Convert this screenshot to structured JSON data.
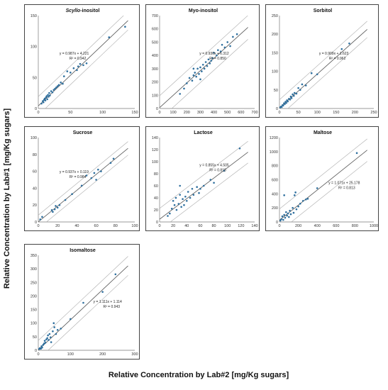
{
  "axis_titles": {
    "y": "Relative Concentration by Lab#1 [mg/Kg sugars]",
    "x": "Relative Concentration by Lab#2 [mg/Kg sugars]"
  },
  "colors": {
    "points": "#2e6f9e",
    "fit": "#555555",
    "band": "#aaaaaa",
    "frame": "#444444"
  },
  "chart_data": [
    {
      "type": "scatter",
      "title": "Scyllo-inositol",
      "title_italic_prefix": "Scyllo",
      "xlim": [
        0,
        150
      ],
      "ylim": [
        0,
        150
      ],
      "xticks": [
        0,
        50,
        100,
        150
      ],
      "yticks": [
        0,
        50,
        100,
        150
      ],
      "equation": "y = 0.987x + 4.221",
      "r2": "R² = 0.942",
      "slope": 0.987,
      "intercept": 4.221,
      "band": 15,
      "points": [
        [
          5,
          8
        ],
        [
          7,
          12
        ],
        [
          8,
          10
        ],
        [
          9,
          14
        ],
        [
          10,
          16
        ],
        [
          11,
          13
        ],
        [
          12,
          18
        ],
        [
          13,
          20
        ],
        [
          14,
          15
        ],
        [
          15,
          22
        ],
        [
          16,
          19
        ],
        [
          17,
          25
        ],
        [
          18,
          21
        ],
        [
          20,
          28
        ],
        [
          22,
          26
        ],
        [
          24,
          30
        ],
        [
          26,
          32
        ],
        [
          28,
          34
        ],
        [
          30,
          36
        ],
        [
          32,
          38
        ],
        [
          35,
          42
        ],
        [
          38,
          40
        ],
        [
          40,
          52
        ],
        [
          45,
          60
        ],
        [
          50,
          58
        ],
        [
          55,
          65
        ],
        [
          60,
          62
        ],
        [
          62,
          68
        ],
        [
          65,
          72
        ],
        [
          70,
          70
        ],
        [
          75,
          73
        ],
        [
          110,
          115
        ],
        [
          135,
          132
        ]
      ]
    },
    {
      "type": "scatter",
      "title": "Myo-inositol",
      "xlim": [
        0,
        700
      ],
      "ylim": [
        0,
        700
      ],
      "xticks": [
        0,
        100,
        200,
        300,
        400,
        500,
        600,
        700
      ],
      "yticks": [
        0,
        100,
        200,
        300,
        400,
        500,
        600,
        700
      ],
      "equation": "y = 0.930x + 6.312",
      "r2": "R² = 0.850",
      "slope": 0.93,
      "intercept": 6.312,
      "band": 90,
      "points": [
        [
          150,
          110
        ],
        [
          180,
          150
        ],
        [
          200,
          190
        ],
        [
          220,
          230
        ],
        [
          240,
          210
        ],
        [
          250,
          250
        ],
        [
          260,
          270
        ],
        [
          270,
          240
        ],
        [
          280,
          300
        ],
        [
          290,
          260
        ],
        [
          300,
          310
        ],
        [
          310,
          280
        ],
        [
          320,
          330
        ],
        [
          330,
          300
        ],
        [
          340,
          350
        ],
        [
          350,
          320
        ],
        [
          360,
          370
        ],
        [
          370,
          340
        ],
        [
          380,
          360
        ],
        [
          390,
          380
        ],
        [
          400,
          420
        ],
        [
          420,
          400
        ],
        [
          430,
          440
        ],
        [
          450,
          430
        ],
        [
          460,
          480
        ],
        [
          480,
          460
        ],
        [
          500,
          500
        ],
        [
          520,
          470
        ],
        [
          540,
          540
        ],
        [
          570,
          560
        ],
        [
          300,
          220
        ],
        [
          250,
          300
        ]
      ]
    },
    {
      "type": "scatter",
      "title": "Sorbitol",
      "xlim": [
        0,
        250
      ],
      "ylim": [
        0,
        250
      ],
      "xticks": [
        0,
        50,
        100,
        150,
        200,
        250
      ],
      "yticks": [
        0,
        50,
        100,
        150,
        200,
        250
      ],
      "equation": "y = 0.909x + 1.623",
      "r2": "R² = 0.962",
      "slope": 0.909,
      "intercept": 1.623,
      "band": 22,
      "points": [
        [
          2,
          3
        ],
        [
          4,
          5
        ],
        [
          6,
          4
        ],
        [
          8,
          9
        ],
        [
          10,
          8
        ],
        [
          12,
          14
        ],
        [
          14,
          12
        ],
        [
          16,
          18
        ],
        [
          18,
          15
        ],
        [
          20,
          22
        ],
        [
          22,
          19
        ],
        [
          25,
          26
        ],
        [
          28,
          24
        ],
        [
          30,
          32
        ],
        [
          32,
          28
        ],
        [
          35,
          38
        ],
        [
          38,
          34
        ],
        [
          40,
          42
        ],
        [
          45,
          40
        ],
        [
          50,
          55
        ],
        [
          55,
          50
        ],
        [
          60,
          65
        ],
        [
          70,
          62
        ],
        [
          85,
          95
        ],
        [
          100,
          92
        ],
        [
          165,
          160
        ],
        [
          185,
          175
        ]
      ]
    },
    {
      "type": "scatter",
      "title": "Sucrose",
      "xlim": [
        0,
        100
      ],
      "ylim": [
        0,
        100
      ],
      "xticks": [
        0,
        20,
        40,
        60,
        80,
        100
      ],
      "yticks": [
        0,
        20,
        40,
        60,
        80,
        100
      ],
      "equation": "y = 0.937x + 0.119",
      "r2": "R² = 0.984",
      "slope": 0.937,
      "intercept": 0.119,
      "band": 8,
      "points": [
        [
          2,
          3
        ],
        [
          4,
          6
        ],
        [
          14,
          14
        ],
        [
          15,
          12
        ],
        [
          17,
          15
        ],
        [
          18,
          19
        ],
        [
          20,
          17
        ],
        [
          22,
          20
        ],
        [
          28,
          26
        ],
        [
          35,
          33
        ],
        [
          45,
          43
        ],
        [
          50,
          55
        ],
        [
          55,
          52
        ],
        [
          58,
          58
        ],
        [
          60,
          50
        ],
        [
          62,
          62
        ],
        [
          65,
          60
        ],
        [
          75,
          70
        ],
        [
          78,
          75
        ]
      ]
    },
    {
      "type": "scatter",
      "title": "Lactose",
      "xlim": [
        0,
        140
      ],
      "ylim": [
        0,
        140
      ],
      "xticks": [
        0,
        20,
        40,
        60,
        80,
        100,
        120,
        140
      ],
      "yticks": [
        0,
        20,
        40,
        60,
        80,
        100,
        120,
        140
      ],
      "equation": "y = 0.855x + 4.505",
      "r2": "R² = 0.818",
      "slope": 0.855,
      "intercept": 4.505,
      "band": 18,
      "points": [
        [
          12,
          10
        ],
        [
          15,
          14
        ],
        [
          18,
          22
        ],
        [
          20,
          35
        ],
        [
          22,
          28
        ],
        [
          24,
          40
        ],
        [
          25,
          20
        ],
        [
          28,
          30
        ],
        [
          30,
          45
        ],
        [
          32,
          25
        ],
        [
          34,
          38
        ],
        [
          36,
          28
        ],
        [
          38,
          42
        ],
        [
          40,
          35
        ],
        [
          42,
          50
        ],
        [
          45,
          40
        ],
        [
          48,
          55
        ],
        [
          50,
          45
        ],
        [
          55,
          58
        ],
        [
          58,
          48
        ],
        [
          60,
          55
        ],
        [
          65,
          60
        ],
        [
          75,
          70
        ],
        [
          80,
          65
        ],
        [
          95,
          85
        ],
        [
          118,
          122
        ],
        [
          30,
          60
        ]
      ]
    },
    {
      "type": "scatter",
      "title": "Maltose",
      "xlim": [
        0,
        1000
      ],
      "ylim": [
        0,
        1200
      ],
      "xticks": [
        0,
        200,
        400,
        600,
        800,
        1000
      ],
      "yticks": [
        0,
        200,
        400,
        600,
        800,
        1000,
        1200
      ],
      "equation": "y = 1.071x + 25.178",
      "r2": "R² = 0.813",
      "slope": 1.071,
      "intercept": 25.178,
      "band": 160,
      "points": [
        [
          10,
          20
        ],
        [
          20,
          40
        ],
        [
          30,
          80
        ],
        [
          40,
          30
        ],
        [
          50,
          100
        ],
        [
          60,
          60
        ],
        [
          70,
          140
        ],
        [
          80,
          90
        ],
        [
          90,
          120
        ],
        [
          100,
          70
        ],
        [
          110,
          160
        ],
        [
          120,
          110
        ],
        [
          140,
          200
        ],
        [
          150,
          130
        ],
        [
          160,
          380
        ],
        [
          170,
          420
        ],
        [
          180,
          180
        ],
        [
          200,
          220
        ],
        [
          220,
          260
        ],
        [
          250,
          300
        ],
        [
          280,
          320
        ],
        [
          300,
          330
        ],
        [
          400,
          480
        ],
        [
          820,
          980
        ],
        [
          50,
          380
        ]
      ]
    },
    {
      "type": "scatter",
      "title": "Isomaltose",
      "xlim": [
        0,
        300
      ],
      "ylim": [
        0,
        350
      ],
      "xticks": [
        0,
        100,
        200,
        300
      ],
      "yticks": [
        0,
        50,
        100,
        150,
        200,
        250,
        300,
        350
      ],
      "equation": "y = 1.111x + 1.114",
      "r2": "R² = 0.943",
      "slope": 1.111,
      "intercept": 1.114,
      "band": 35,
      "points": [
        [
          3,
          5
        ],
        [
          5,
          8
        ],
        [
          8,
          6
        ],
        [
          10,
          15
        ],
        [
          12,
          10
        ],
        [
          15,
          20
        ],
        [
          18,
          25
        ],
        [
          20,
          35
        ],
        [
          22,
          28
        ],
        [
          25,
          40
        ],
        [
          28,
          45
        ],
        [
          30,
          55
        ],
        [
          32,
          38
        ],
        [
          35,
          60
        ],
        [
          38,
          48
        ],
        [
          40,
          30
        ],
        [
          45,
          70
        ],
        [
          48,
          100
        ],
        [
          50,
          85
        ],
        [
          55,
          60
        ],
        [
          60,
          75
        ],
        [
          70,
          80
        ],
        [
          100,
          115
        ],
        [
          140,
          175
        ],
        [
          200,
          215
        ],
        [
          240,
          280
        ]
      ]
    }
  ]
}
